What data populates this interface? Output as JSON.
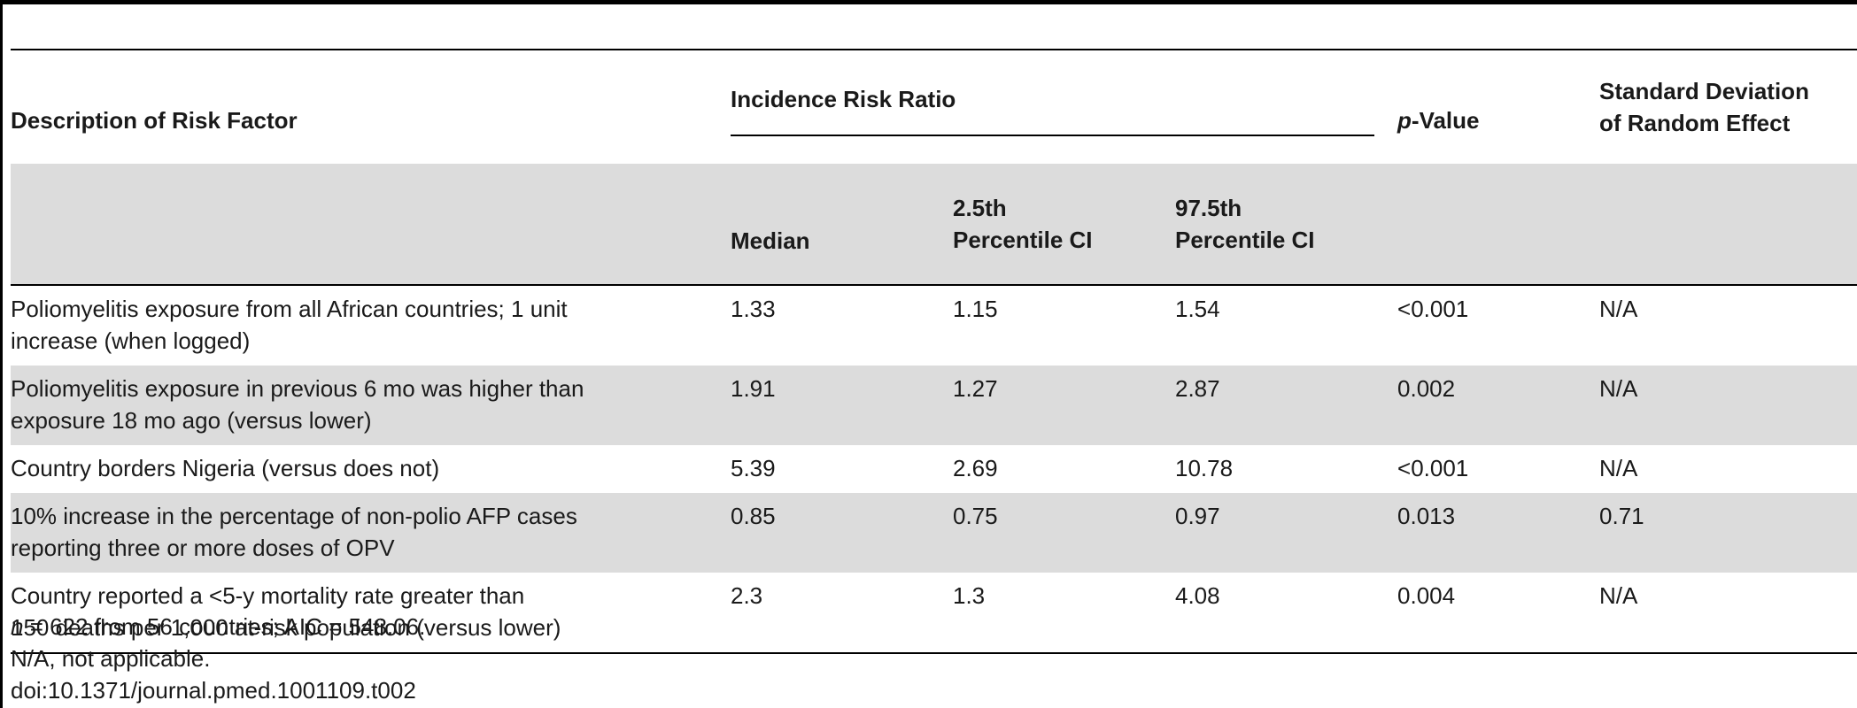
{
  "table": {
    "header": {
      "description": "Description of Risk Factor",
      "irr_group": "Incidence Risk Ratio",
      "p_value_italic": "p",
      "p_value_rest": "-Value",
      "sd_line1": "Standard Deviation",
      "sd_line2": "of Random Effect",
      "median": "Median",
      "ci_low_line1": "2.5th",
      "ci_low_line2": "Percentile CI",
      "ci_high_line1": "97.5th",
      "ci_high_line2": "Percentile CI"
    },
    "rows": [
      {
        "desc_line1": "Poliomyelitis exposure from all African countries; 1 unit",
        "desc_line2": "increase (when logged)",
        "median": "1.33",
        "ci_low": "1.15",
        "ci_high": "1.54",
        "p_value": "<0.001",
        "sd": "N/A"
      },
      {
        "desc_line1": "Poliomyelitis exposure in previous 6 mo was higher than",
        "desc_line2": "exposure 18 mo ago (versus lower)",
        "median": "1.91",
        "ci_low": "1.27",
        "ci_high": "2.87",
        "p_value": "0.002",
        "sd": "N/A"
      },
      {
        "desc_line1": "Country borders Nigeria (versus does not)",
        "desc_line2": "",
        "median": "5.39",
        "ci_low": "2.69",
        "ci_high": "10.78",
        "p_value": "<0.001",
        "sd": "N/A"
      },
      {
        "desc_line1": "10% increase in the percentage of non-polio AFP cases",
        "desc_line2": "reporting three or more doses of OPV",
        "median": "0.85",
        "ci_low": "0.75",
        "ci_high": "0.97",
        "p_value": "0.013",
        "sd": "0.71"
      },
      {
        "desc_line1": "Country reported a <5-y mortality rate greater than",
        "desc_line2": "150 deaths per 1,000 at-risk population (versus lower)",
        "median": "2.3",
        "ci_low": "1.3",
        "ci_high": "4.08",
        "p_value": "0.004",
        "sd": "N/A"
      }
    ]
  },
  "footnotes": {
    "n_italic": "n",
    "n_rest": " = 622 from 56 countries; AIC = 548.06.",
    "na_note": "N/A, not applicable.",
    "doi": "doi:10.1371/journal.pmed.1001109.t002"
  }
}
